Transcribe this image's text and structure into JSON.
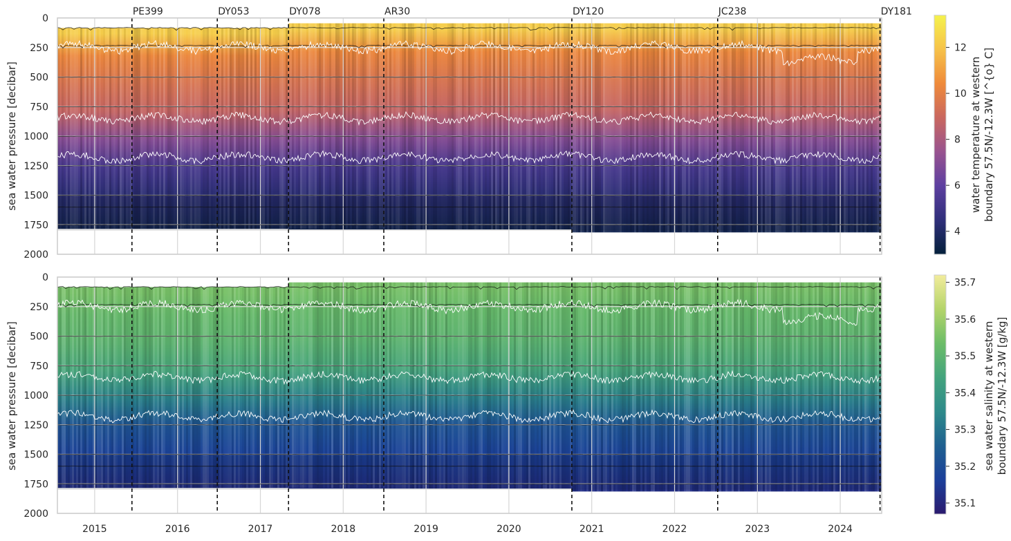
{
  "chart_data": [
    {
      "type": "heatmap",
      "panel": "top",
      "ylabel": "sea water pressure [decibar]",
      "ylim": [
        2000,
        0
      ],
      "yticks": [
        0,
        250,
        500,
        750,
        1000,
        1250,
        1500,
        1750,
        2000
      ],
      "xlim": [
        2014.55,
        2024.5
      ],
      "xticks": [
        "2015",
        "2016",
        "2017",
        "2018",
        "2019",
        "2020",
        "2021",
        "2022",
        "2023",
        "2024"
      ],
      "grid": true,
      "colorbar": {
        "label_line1": "water temperature at western",
        "label_line2": "boundary 57.5N/-12.3W [^{o} C]",
        "range": [
          3.0,
          13.4
        ],
        "ticks": [
          4,
          6,
          8,
          10,
          12
        ],
        "colors": [
          "#04203b",
          "#2f2f7a",
          "#5d3fa0",
          "#98538f",
          "#c9675f",
          "#ef8a3a",
          "#f6c24a",
          "#f5f24c"
        ]
      },
      "temperature_profile": [
        {
          "depth": 50,
          "value": 12.3
        },
        {
          "depth": 250,
          "value": 10.3
        },
        {
          "depth": 500,
          "value": 9.5
        },
        {
          "depth": 750,
          "value": 8.8
        },
        {
          "depth": 1000,
          "value": 7.0
        },
        {
          "depth": 1250,
          "value": 5.2
        },
        {
          "depth": 1500,
          "value": 4.3
        },
        {
          "depth": 1750,
          "value": 3.7
        },
        {
          "depth": 1800,
          "value": 3.5
        }
      ]
    },
    {
      "type": "heatmap",
      "panel": "bottom",
      "ylabel": "sea water pressure [decibar]",
      "ylim": [
        2000,
        0
      ],
      "yticks": [
        0,
        250,
        500,
        750,
        1000,
        1250,
        1500,
        1750,
        2000
      ],
      "xlim": [
        2014.55,
        2024.5
      ],
      "xticks": [
        "2015",
        "2016",
        "2017",
        "2018",
        "2019",
        "2020",
        "2021",
        "2022",
        "2023",
        "2024"
      ],
      "grid": true,
      "colorbar": {
        "label_line1": "sea water salinity at western",
        "label_line2": "boundary 57.5N/-12.3W [g/kg]",
        "range": [
          35.07,
          35.72
        ],
        "ticks": [
          35.1,
          35.2,
          35.3,
          35.4,
          35.5,
          35.6,
          35.7
        ],
        "colors": [
          "#2a1a6e",
          "#1c3f9a",
          "#1f6090",
          "#2e8a8a",
          "#43a37d",
          "#6cbd68",
          "#b4d46a",
          "#f2ec9c"
        ]
      },
      "salinity_profile": [
        {
          "depth": 50,
          "value": 35.55
        },
        {
          "depth": 250,
          "value": 35.52
        },
        {
          "depth": 500,
          "value": 35.5
        },
        {
          "depth": 750,
          "value": 35.45
        },
        {
          "depth": 1000,
          "value": 35.33
        },
        {
          "depth": 1250,
          "value": 35.22
        },
        {
          "depth": 1500,
          "value": 35.17
        },
        {
          "depth": 1750,
          "value": 35.13
        },
        {
          "depth": 1800,
          "value": 35.12
        }
      ]
    }
  ],
  "cruises": [
    {
      "name": "PE399",
      "year": 2015.45
    },
    {
      "name": "DY053",
      "year": 2016.48
    },
    {
      "name": "DY078",
      "year": 2017.34
    },
    {
      "name": "AR30",
      "year": 2018.49
    },
    {
      "name": "DY120",
      "year": 2020.76
    },
    {
      "name": "JC238",
      "year": 2022.52
    },
    {
      "name": "DY181",
      "year": 2024.48
    }
  ],
  "isotherm_depths": [
    250,
    850,
    1180
  ],
  "instrument_depths": [
    80,
    230,
    500,
    750,
    1000,
    1250,
    1500,
    1600,
    1750
  ]
}
